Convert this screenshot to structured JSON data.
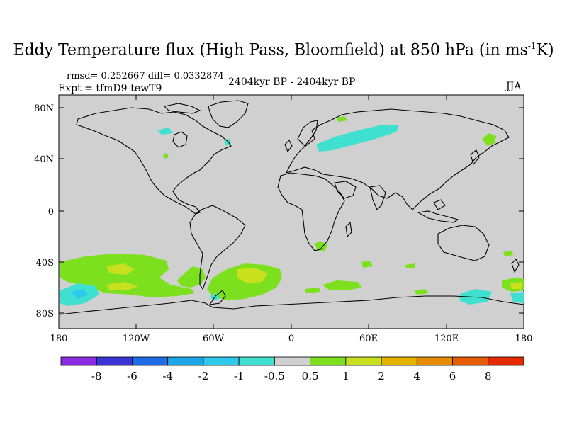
{
  "title": {
    "main": "Eddy Temperature flux (High Pass, Bloomfield) at 850 hPa (in ms",
    "sup": "-1",
    "tail": "K)"
  },
  "stats": "rmsd= 0.252667 diff= 0.0332874",
  "expt": "Expt = tfmD9-tewT9",
  "period": "2404kyr BP - 2404kyr BP",
  "season": "JJA",
  "axes": {
    "lat_ticks": [
      "80N",
      "40N",
      "0",
      "40S",
      "80S"
    ],
    "lon_ticks": [
      "180",
      "120W",
      "60W",
      "0",
      "60E",
      "120E",
      "180"
    ]
  },
  "colorbar": {
    "colors": [
      "#8a2be2",
      "#3a33d6",
      "#1e6be6",
      "#1ea5e6",
      "#2ec8ec",
      "#40e0d0",
      "#d0d0d0",
      "#7ce01e",
      "#c8e01e",
      "#e6b400",
      "#e68c00",
      "#e65c00",
      "#e62a00"
    ],
    "labels": [
      "-8",
      "-6",
      "-4",
      "-2",
      "-1",
      "-0.5",
      "0.5",
      "1",
      "2",
      "4",
      "6",
      "8"
    ]
  },
  "map_colors": {
    "background": "#d0d0d0",
    "green": "#7ce01e",
    "yellow": "#c8e01e",
    "cyan": "#40e0d0",
    "blue": "#2ec8ec",
    "coast": "#000000"
  }
}
